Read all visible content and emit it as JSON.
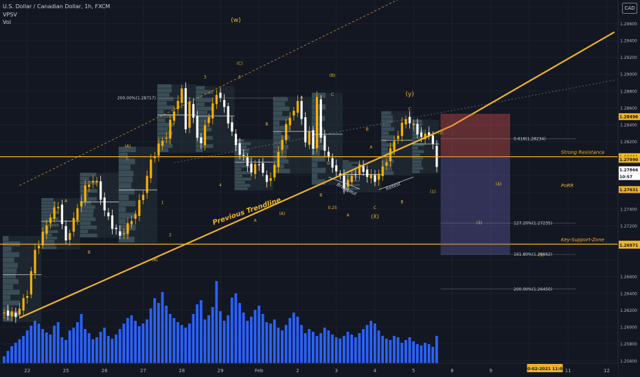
{
  "header": {
    "symbol": "U.S. Dollar / Canadian Dollar, 1h, FXCM",
    "indicator_1": "VPSV",
    "indicator_2": "Vol",
    "currency": "CAD"
  },
  "colors": {
    "background": "#131722",
    "gold": "#f0b429",
    "bull_candle": "#ffb000",
    "volume": "#2962ff",
    "stop_zone": "#f0584f",
    "target_zone": "#6a64b4"
  },
  "chart_data": {
    "type": "candlestick",
    "ylim": [
      1.2557,
      1.2988
    ],
    "price_axis": [
      "1.29600",
      "1.29400",
      "1.29200",
      "1.29000",
      "1.28800",
      "1.28600",
      "1.28400",
      "1.28200",
      "1.27800",
      "1.27400",
      "1.27200",
      "1.27000",
      "1.26600",
      "1.26400",
      "1.26200",
      "1.26000",
      "1.25800",
      "1.25600"
    ],
    "price_badges": [
      {
        "value": "1.28496",
        "role": "marker"
      },
      {
        "value": "1.28021",
        "role": "strong-resistance"
      },
      {
        "value": "1.27990",
        "role": "marker"
      },
      {
        "value": "1.27866",
        "role": "last-price"
      },
      {
        "value": "10:57",
        "role": "countdown"
      },
      {
        "value": "1.27631",
        "role": "marker"
      },
      {
        "value": "1.26983",
        "role": "key-support"
      },
      {
        "value": "1.26971",
        "role": "marker"
      }
    ],
    "date_axis": [
      {
        "label": "22",
        "idx": 6
      },
      {
        "label": "25",
        "idx": 16
      },
      {
        "label": "26",
        "idx": 26
      },
      {
        "label": "27",
        "idx": 36
      },
      {
        "label": "28",
        "idx": 46
      },
      {
        "label": "29",
        "idx": 56
      },
      {
        "label": "Feb",
        "idx": 66
      },
      {
        "label": "2",
        "idx": 76
      },
      {
        "label": "3",
        "idx": 86
      },
      {
        "label": "4",
        "idx": 96
      },
      {
        "label": "5",
        "idx": 106
      },
      {
        "label": "8",
        "idx": 116
      },
      {
        "label": "9",
        "idx": 126
      },
      {
        "label": "10",
        "idx": 136
      },
      {
        "label": "11",
        "idx": 146
      },
      {
        "label": "12",
        "idx": 156
      }
    ],
    "date_badge": {
      "label": "10-02-2021  11:00",
      "idx": 140
    },
    "path": [
      [
        0,
        1.2617
      ],
      [
        3,
        1.2614
      ],
      [
        6,
        1.264
      ],
      [
        8,
        1.269
      ],
      [
        10,
        1.271
      ],
      [
        12,
        1.2732
      ],
      [
        14,
        1.2745
      ],
      [
        16,
        1.27
      ],
      [
        17,
        1.2715
      ],
      [
        19,
        1.274
      ],
      [
        21,
        1.2765
      ],
      [
        23,
        1.2775
      ],
      [
        24,
        1.277
      ],
      [
        26,
        1.2738
      ],
      [
        28,
        1.272
      ],
      [
        30,
        1.2708
      ],
      [
        32,
        1.272
      ],
      [
        34,
        1.2735
      ],
      [
        36,
        1.276
      ],
      [
        38,
        1.2797
      ],
      [
        40,
        1.2815
      ],
      [
        42,
        1.2827
      ],
      [
        44,
        1.2858
      ],
      [
        46,
        1.288
      ],
      [
        47,
        1.2838
      ],
      [
        48,
        1.2866
      ],
      [
        50,
        1.2828
      ],
      [
        51,
        1.2815
      ],
      [
        52,
        1.284
      ],
      [
        54,
        1.2862
      ],
      [
        55,
        1.2878
      ],
      [
        56,
        1.2872
      ],
      [
        58,
        1.2845
      ],
      [
        60,
        1.2815
      ],
      [
        62,
        1.28
      ],
      [
        64,
        1.2785
      ],
      [
        66,
        1.2795
      ],
      [
        68,
        1.277
      ],
      [
        70,
        1.279
      ],
      [
        72,
        1.2825
      ],
      [
        74,
        1.285
      ],
      [
        76,
        1.2865
      ],
      [
        77,
        1.285
      ],
      [
        78,
        1.2818
      ],
      [
        79,
        1.283
      ],
      [
        80,
        1.2815
      ],
      [
        81,
        1.287
      ],
      [
        82,
        1.2825
      ],
      [
        84,
        1.2798
      ],
      [
        86,
        1.2785
      ],
      [
        88,
        1.2768
      ],
      [
        90,
        1.2778
      ],
      [
        92,
        1.279
      ],
      [
        94,
        1.278
      ],
      [
        96,
        1.2775
      ],
      [
        98,
        1.2788
      ],
      [
        100,
        1.281
      ],
      [
        102,
        1.283
      ],
      [
        104,
        1.2848
      ],
      [
        106,
        1.2838
      ],
      [
        108,
        1.2825
      ],
      [
        110,
        1.283
      ],
      [
        111,
        1.2815
      ],
      [
        112,
        1.279
      ]
    ],
    "volume_heights": [
      10,
      18,
      25,
      30,
      35,
      40,
      48,
      55,
      62,
      58,
      50,
      45,
      42,
      55,
      60,
      38,
      34,
      48,
      52,
      60,
      72,
      50,
      44,
      35,
      38,
      46,
      52,
      40,
      36,
      42,
      50,
      58,
      66,
      70,
      62,
      54,
      58,
      64,
      80,
      95,
      88,
      104,
      84,
      72,
      66,
      60,
      56,
      52,
      58,
      72,
      86,
      92,
      64,
      70,
      82,
      120,
      76,
      62,
      70,
      96,
      102,
      88,
      74,
      62,
      68,
      78,
      84,
      72,
      60,
      58,
      64,
      52,
      48,
      56,
      66,
      74,
      68,
      56,
      44,
      50,
      46,
      40,
      44,
      52,
      48,
      42,
      38,
      36,
      40,
      46,
      42,
      38,
      44,
      50,
      56,
      62,
      58,
      48,
      40,
      36,
      34,
      40,
      38,
      30,
      34,
      38,
      32,
      28,
      26,
      30,
      28,
      24,
      40
    ],
    "annotations": [
      {
        "text": "(w)",
        "idx": 60,
        "price": 1.2962,
        "size": 9
      },
      {
        "text": "(C)",
        "idx": 61,
        "price": 1.2911,
        "size": 6
      },
      {
        "text": "3",
        "idx": 52,
        "price": 1.2895,
        "size": 6
      },
      {
        "text": "5",
        "idx": 61,
        "price": 1.2895,
        "size": 6
      },
      {
        "text": "(B)",
        "idx": 85,
        "price": 1.2897,
        "size": 6
      },
      {
        "text": "(y)",
        "idx": 105,
        "price": 1.2874,
        "size": 9
      },
      {
        "text": "C",
        "idx": 85,
        "price": 1.2874,
        "size": 6
      },
      {
        "text": "A",
        "idx": 77,
        "price": 1.2871,
        "size": 6
      },
      {
        "text": "C",
        "idx": 105,
        "price": 1.2857,
        "size": 6
      },
      {
        "text": "(A)",
        "idx": 32,
        "price": 1.2813,
        "size": 6
      },
      {
        "text": "C",
        "idx": 32,
        "price": 1.2798,
        "size": 6
      },
      {
        "text": "B",
        "idx": 68,
        "price": 1.2839,
        "size": 6
      },
      {
        "text": "B",
        "idx": 94,
        "price": 1.2833,
        "size": 6
      },
      {
        "text": "(2)",
        "idx": 113,
        "price": 1.2829,
        "size": 6
      },
      {
        "text": "A",
        "idx": 95,
        "price": 1.2812,
        "size": 6
      },
      {
        "text": "D",
        "idx": 84,
        "price": 1.2793,
        "size": 6
      },
      {
        "text": "4",
        "idx": 56,
        "price": 1.2767,
        "size": 6
      },
      {
        "text": "(4)",
        "idx": 128,
        "price": 1.2768,
        "size": 6
      },
      {
        "text": "(1)",
        "idx": 111,
        "price": 1.2759,
        "size": 6
      },
      {
        "text": "B",
        "idx": 82,
        "price": 1.2755,
        "size": 6
      },
      {
        "text": "A",
        "idx": 16,
        "price": 1.2748,
        "size": 6
      },
      {
        "text": "1",
        "idx": 41,
        "price": 1.2746,
        "size": 6
      },
      {
        "text": "B",
        "idx": 103,
        "price": 1.2747,
        "size": 6
      },
      {
        "text": "0.25",
        "idx": 85,
        "price": 1.274,
        "size": 6
      },
      {
        "text": "C",
        "idx": 96,
        "price": 1.274,
        "size": 6
      },
      {
        "text": "(A)",
        "idx": 72,
        "price": 1.2733,
        "size": 6
      },
      {
        "text": "A",
        "idx": 89,
        "price": 1.2731,
        "size": 6
      },
      {
        "text": "(X)",
        "idx": 96,
        "price": 1.2729,
        "size": 8
      },
      {
        "text": "A",
        "idx": 65,
        "price": 1.2725,
        "size": 6
      },
      {
        "text": "(3)",
        "idx": 123,
        "price": 1.2722,
        "size": 6
      },
      {
        "text": "2",
        "idx": 43,
        "price": 1.2708,
        "size": 6
      },
      {
        "text": "B",
        "idx": 22,
        "price": 1.2687,
        "size": 6
      },
      {
        "text": "(5)",
        "idx": 139,
        "price": 1.2684,
        "size": 6
      },
      {
        "text": "(B)",
        "idx": 39,
        "price": 1.2678,
        "size": 6
      }
    ],
    "line_labels": {
      "previous_trendline": "Previous Trendline",
      "breakout": "Breakout",
      "retest": "Retest",
      "strong_resistance": "Strong Resistance",
      "porr": "PoRR",
      "key_support_zone": "Key-Support-Zone"
    },
    "fib_labels": {
      "fib_200_top": "200.00%(1.28717)",
      "fib_0618": "0.618(1.28234)",
      "fib_127": "127.20%(1.27235)",
      "fib_161": "161.80%(1.26862)",
      "fib_200_bottom": "200.00%(1.26450)"
    },
    "levels": {
      "strong_resistance": 1.28021,
      "key_support": 1.26983,
      "fib_200_top": 1.28717,
      "fib_0618": 1.28234,
      "fib_127": 1.27235,
      "fib_161": 1.26862,
      "fib_200_bottom": 1.2645
    },
    "position": {
      "stop_top": 1.2853,
      "entry": 1.2802,
      "target": 1.2686
    },
    "trendlines": {
      "previous": [
        [
          4,
          1.2611
        ],
        [
          66,
          1.2737
        ],
        [
          116,
          1.2839
        ],
        [
          158,
          1.295
        ]
      ],
      "upper_dashed": [
        [
          4,
          1.2768
        ],
        [
          104,
          1.2993
        ]
      ],
      "mid_dotted": [
        [
          44,
          1.2795
        ],
        [
          158,
          1.2893
        ]
      ]
    }
  }
}
